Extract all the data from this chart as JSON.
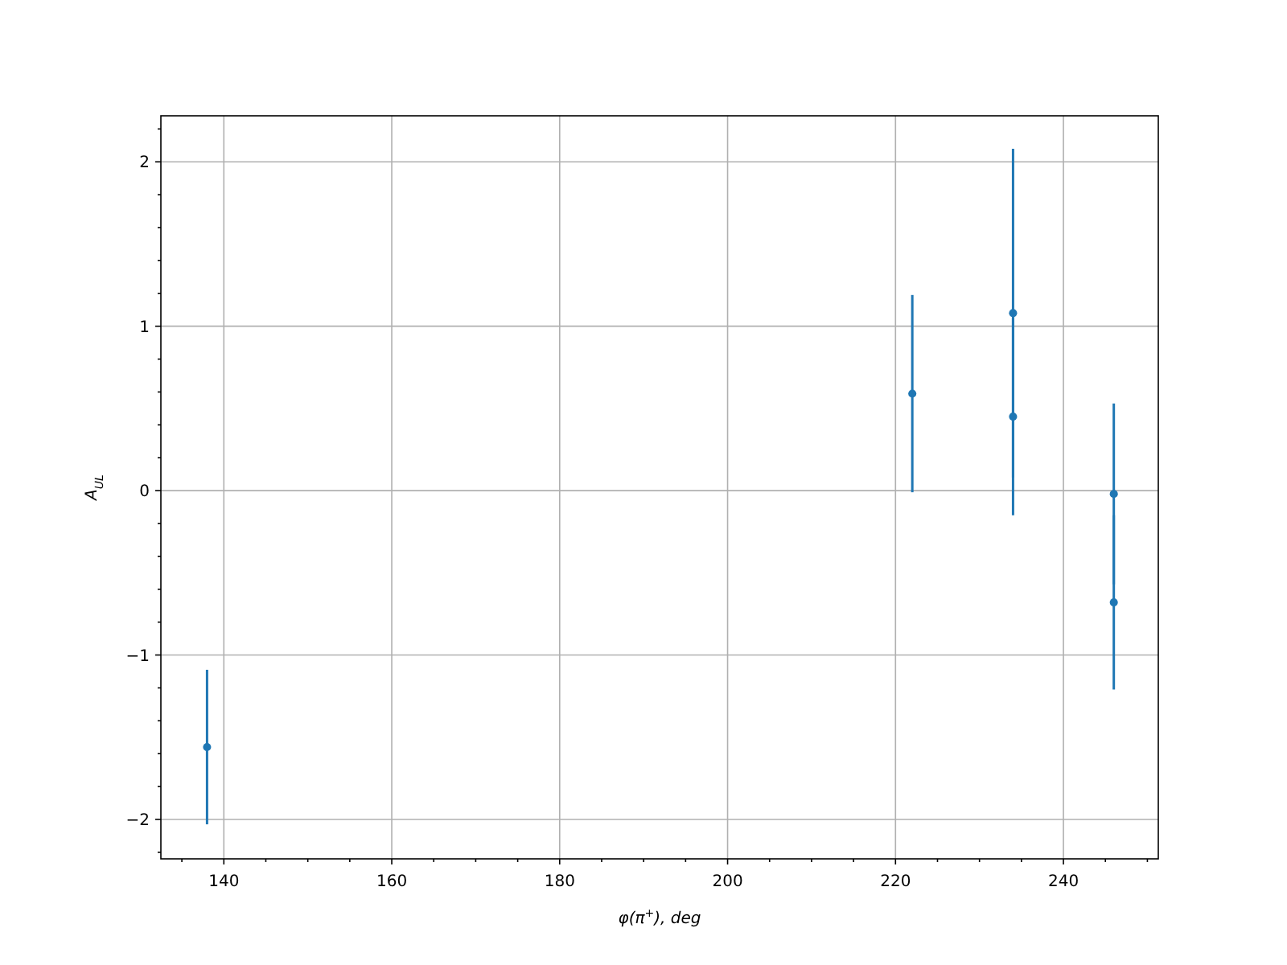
{
  "chart_data": {
    "type": "scatter",
    "xlabel": "φ(π$^{+}$), deg",
    "ylabel": "A$_{UL}$",
    "x": [
      138,
      222,
      234,
      234,
      246,
      246
    ],
    "series": [
      {
        "color": "#1f77b4",
        "values": [
          -1.56,
          0.59,
          1.08,
          0.45,
          -0.02,
          -0.68
        ],
        "errors": [
          0.47,
          0.6,
          1.0,
          0.6,
          0.55,
          0.53
        ]
      }
    ],
    "xlim": [
      132.5,
      251.3
    ],
    "ylim": [
      -2.24,
      2.28
    ],
    "xticks": [
      140,
      160,
      180,
      200,
      220,
      240,
      {
        "value": 135,
        "label": null
      },
      {
        "value": 145,
        "label": null
      },
      {
        "value": 150,
        "label": null
      },
      {
        "value": 155,
        "label": null
      },
      {
        "value": 165,
        "label": null
      },
      {
        "value": 170,
        "label": null
      },
      {
        "value": 175,
        "label": null
      },
      {
        "value": 185,
        "label": null
      },
      {
        "value": 190,
        "label": null
      },
      {
        "value": 195,
        "label": null
      },
      {
        "value": 205,
        "label": null
      },
      {
        "value": 210,
        "label": null
      },
      {
        "value": 215,
        "label": null
      },
      {
        "value": 225,
        "label": null
      },
      {
        "value": 230,
        "label": null
      },
      {
        "value": 235,
        "label": null
      },
      {
        "value": 245,
        "label": null
      },
      {
        "value": 250,
        "label": null
      }
    ],
    "yticks": [
      -2,
      -1,
      0,
      1,
      2,
      {
        "value": -2.2,
        "label": null
      },
      {
        "value": -1.8,
        "label": null
      },
      {
        "value": -1.6,
        "label": null
      },
      {
        "value": -1.4,
        "label": null
      },
      {
        "value": -1.2,
        "label": null
      },
      {
        "value": -0.8,
        "label": null
      },
      {
        "value": -0.6,
        "label": null
      },
      {
        "value": -0.4,
        "label": null
      },
      {
        "value": -0.2,
        "label": null
      },
      {
        "value": 0.2,
        "label": null
      },
      {
        "value": 0.4,
        "label": null
      },
      {
        "value": 0.6,
        "label": null
      },
      {
        "value": 0.8,
        "label": null
      },
      {
        "value": 1.2,
        "label": null
      },
      {
        "value": 1.4,
        "label": null
      },
      {
        "value": 1.6,
        "label": null
      },
      {
        "value": 1.8,
        "label": null
      },
      {
        "value": 2.2,
        "label": null
      }
    ],
    "grid": true,
    "marker": "circle"
  }
}
